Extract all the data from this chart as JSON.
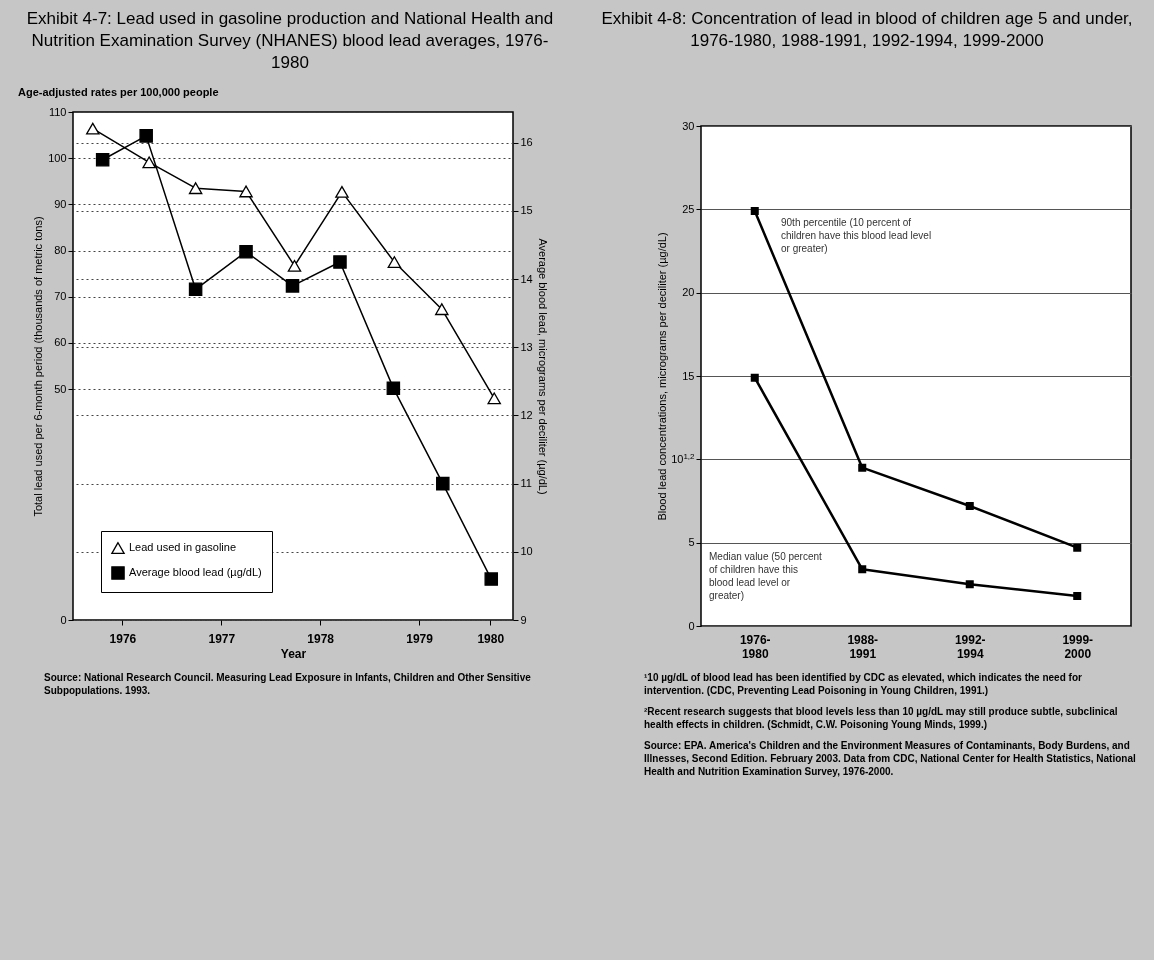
{
  "chart_data": [
    {
      "type": "line",
      "title": "Exhibit 4-7: Lead used in gasoline production and National Health and Nutrition Examination Survey (NHANES) blood lead averages, 1976-1980",
      "subtitle": "Age-adjusted rates per 100,000 people",
      "xlabel": "Year",
      "ylabel": "Total lead used per 6-month period (thousands of metric tons)",
      "y2label": "Average blood lead, micrograms per deciliter (µg/dL)",
      "xlim": [
        1976,
        1980.45
      ],
      "xticks": [
        {
          "value": 1976.5,
          "label": "1976"
        },
        {
          "value": 1977.5,
          "label": "1977"
        },
        {
          "value": 1978.5,
          "label": "1978"
        },
        {
          "value": 1979.5,
          "label": "1979"
        },
        {
          "value": 1980.22,
          "label": "1980"
        }
      ],
      "ylim": [
        0,
        110
      ],
      "yticks": [
        0,
        50,
        60,
        70,
        80,
        90,
        100,
        110
      ],
      "y2lim": [
        9,
        16.45
      ],
      "y2ticks": [
        9,
        10,
        11,
        12,
        13,
        14,
        15,
        16
      ],
      "grid": "y",
      "legend": "bottom left",
      "series": [
        {
          "name": "Lead used in gasoline",
          "color": "#000000",
          "marker": "triangle",
          "x": [
            1976.2,
            1976.77,
            1977.24,
            1977.75,
            1978.24,
            1978.72,
            1979.25,
            1979.73,
            1980.26
          ],
          "values": [
            106.4,
            99.1,
            93.5,
            92.8,
            76.7,
            92.7,
            77.5,
            67.3,
            48
          ]
        },
        {
          "name": "Average blood lead (µg/dL)",
          "axis": "y2",
          "color": "#000000",
          "marker": "square",
          "x": [
            1976.3,
            1976.74,
            1977.24,
            1977.75,
            1978.22,
            1978.7,
            1979.24,
            1979.74,
            1980.23
          ],
          "values": [
            15.75,
            16.1,
            13.85,
            14.4,
            13.9,
            14.25,
            12.4,
            11.0,
            9.6
          ]
        }
      ],
      "annotations": [
        "Source: National Research Council. Measuring Lead Exposure in Infants, Children and Other Sensitive Subpopulations. 1993."
      ]
    },
    {
      "type": "line",
      "title": "Exhibit 4-8: Concentration of lead in blood of children age 5 and under, 1976-1980, 1988-1991, 1992-1994, 1999-2000",
      "ylabel": "Blood lead concentrations, micrograms per deciliter (µg/dL)",
      "categories": [
        "1976-\n1980",
        "1988-\n1991",
        "1992-\n1994",
        "1999-\n2000"
      ],
      "ylim": [
        0,
        30
      ],
      "yticks": [
        0,
        5,
        {
          "value": 10,
          "label": "10$^{1,2}$"
        },
        15,
        20,
        25,
        30
      ],
      "grid": "y",
      "marker": "square",
      "series": [
        {
          "name": "90th percentile (10 percent of children have this blood lead level or greater)",
          "color": "#000000",
          "values": [
            24.9,
            9.5,
            7.2,
            4.7
          ]
        },
        {
          "name": "Median value (50 percent of children have this blood lead level or greater)",
          "color": "#000000",
          "values": [
            14.9,
            3.4,
            2.5,
            1.8
          ]
        }
      ],
      "annotations": [
        "¹10 µg/dL of blood lead has been identified by CDC as elevated, which indicates the need for intervention. (CDC, Preventing Lead Poisoning in Young Children, 1991.)",
        "²Recent research suggests that blood levels less than 10 µg/dL may still produce subtle, subclinical health effects in children. (Schmidt, C.W. Poisoning Young Minds, 1999.)",
        "Source: EPA. America's Children and the Environment Measures of Contaminants, Body Burdens, and Illnesses, Second Edition. February 2003. Data from CDC, National Center for Health Statistics, National Health and Nutrition Examination Survey, 1976-2000."
      ]
    }
  ]
}
